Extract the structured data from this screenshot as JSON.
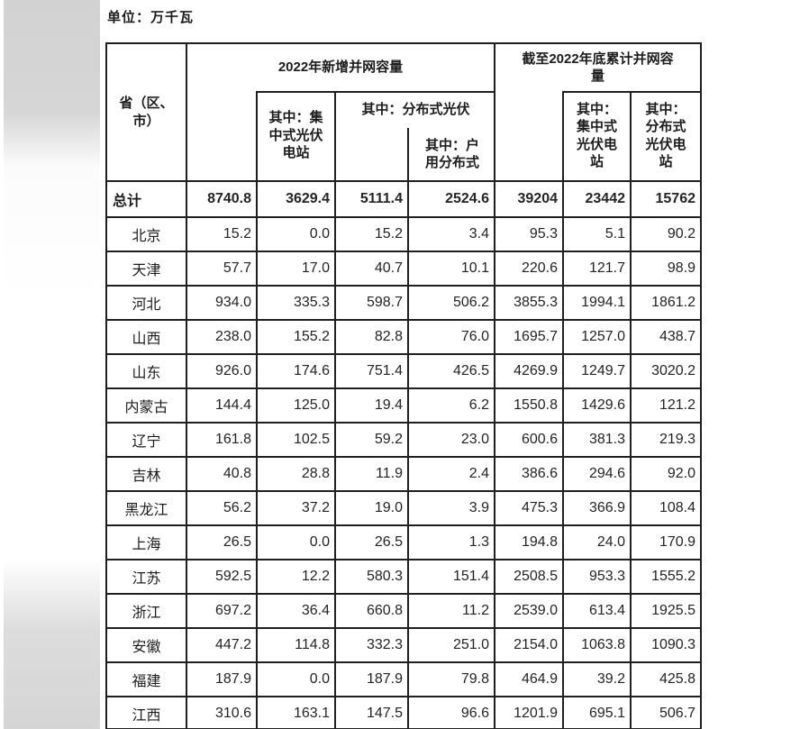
{
  "page": {
    "unit_label": "单位：万千瓦"
  },
  "table": {
    "headers": {
      "province": "省（区、市）",
      "group_new_2022": "2022年新增并网容量",
      "group_cumulative_2022": "截至2022年底累计并网容量",
      "new_centralized": "其中：集中式光伏电站",
      "new_distributed": "其中：分布式光伏",
      "new_household": "其中：户用分布式",
      "cum_centralized": "其中：集中式光伏电站",
      "cum_distributed": "其中：分布式光伏电站"
    },
    "total_row": {
      "label": "总计",
      "values": [
        "8740.8",
        "3629.4",
        "5111.4",
        "2524.6",
        "39204",
        "23442",
        "15762"
      ]
    },
    "rows": [
      {
        "label": "北京",
        "values": [
          "15.2",
          "0.0",
          "15.2",
          "3.4",
          "95.3",
          "5.1",
          "90.2"
        ]
      },
      {
        "label": "天津",
        "values": [
          "57.7",
          "17.0",
          "40.7",
          "10.1",
          "220.6",
          "121.7",
          "98.9"
        ]
      },
      {
        "label": "河北",
        "values": [
          "934.0",
          "335.3",
          "598.7",
          "506.2",
          "3855.3",
          "1994.1",
          "1861.2"
        ]
      },
      {
        "label": "山西",
        "values": [
          "238.0",
          "155.2",
          "82.8",
          "76.0",
          "1695.7",
          "1257.0",
          "438.7"
        ]
      },
      {
        "label": "山东",
        "values": [
          "926.0",
          "174.6",
          "751.4",
          "426.5",
          "4269.9",
          "1249.7",
          "3020.2"
        ]
      },
      {
        "label": "内蒙古",
        "values": [
          "144.4",
          "125.0",
          "19.4",
          "6.2",
          "1550.8",
          "1429.6",
          "121.2"
        ]
      },
      {
        "label": "辽宁",
        "values": [
          "161.8",
          "102.5",
          "59.2",
          "23.0",
          "600.6",
          "381.3",
          "219.3"
        ]
      },
      {
        "label": "吉林",
        "values": [
          "40.8",
          "28.8",
          "11.9",
          "2.4",
          "386.6",
          "294.6",
          "92.0"
        ]
      },
      {
        "label": "黑龙江",
        "values": [
          "56.2",
          "37.2",
          "19.0",
          "3.9",
          "475.3",
          "366.9",
          "108.4"
        ]
      },
      {
        "label": "上海",
        "values": [
          "26.5",
          "0.0",
          "26.5",
          "1.3",
          "194.8",
          "24.0",
          "170.9"
        ]
      },
      {
        "label": "江苏",
        "values": [
          "592.5",
          "12.2",
          "580.3",
          "151.4",
          "2508.5",
          "953.3",
          "1555.2"
        ]
      },
      {
        "label": "浙江",
        "values": [
          "697.2",
          "36.4",
          "660.8",
          "11.2",
          "2539.0",
          "613.4",
          "1925.5"
        ]
      },
      {
        "label": "安徽",
        "values": [
          "447.2",
          "114.8",
          "332.3",
          "251.0",
          "2154.0",
          "1063.8",
          "1090.3"
        ]
      },
      {
        "label": "福建",
        "values": [
          "187.9",
          "0.0",
          "187.9",
          "79.8",
          "464.9",
          "39.2",
          "425.8"
        ]
      },
      {
        "label": "江西",
        "values": [
          "310.6",
          "163.1",
          "147.5",
          "96.6",
          "1201.9",
          "695.1",
          "506.7"
        ]
      }
    ]
  }
}
